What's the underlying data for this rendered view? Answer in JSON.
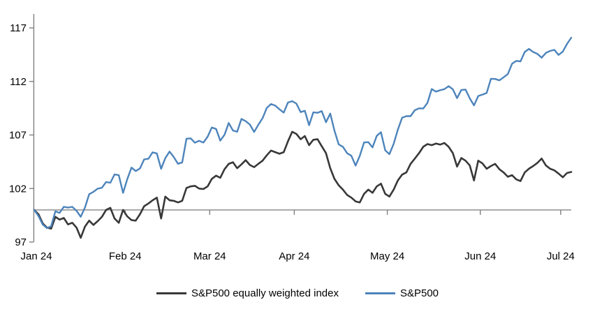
{
  "figure": {
    "background": "#ffffff",
    "text_color": "#000000",
    "axis_color": "#808080",
    "baseline_color": "#a6a6a6"
  },
  "chart_data": {
    "type": "line",
    "title": "",
    "xlabel": "",
    "ylabel": "",
    "x_axis": {
      "tick_labels": [
        "Jan 24",
        "Feb 24",
        "Mar 24",
        "Apr 24",
        "May 24",
        "Jun 24",
        "Jul 24"
      ],
      "tick_day_indices": [
        0.5,
        21.5,
        41.5,
        61.5,
        83.5,
        105.5,
        124.5
      ],
      "unit": "trading days, Dec 29 2023 = index 100"
    },
    "y_axis": {
      "ticks": [
        97,
        102,
        107,
        112,
        117
      ],
      "range": [
        97,
        117
      ],
      "grid": false
    },
    "baseline_value": 100,
    "legend_position": "bottom",
    "series": [
      {
        "name": "S&P500 equally weighted index",
        "color": "#383838",
        "values": [
          100.0,
          99.6,
          98.75,
          98.35,
          98.25,
          99.35,
          99.1,
          99.25,
          98.65,
          98.8,
          98.35,
          97.4,
          98.45,
          99.0,
          98.6,
          98.95,
          99.35,
          100.0,
          100.2,
          99.2,
          98.8,
          100.0,
          99.4,
          99.05,
          99.0,
          99.6,
          100.35,
          100.6,
          100.9,
          101.15,
          99.2,
          101.25,
          100.9,
          100.85,
          100.7,
          100.85,
          102.05,
          102.2,
          102.25,
          102.0,
          101.95,
          102.2,
          102.9,
          103.2,
          103.0,
          103.8,
          104.3,
          104.45,
          103.9,
          104.25,
          104.65,
          104.2,
          104.0,
          104.3,
          104.6,
          105.1,
          105.55,
          105.4,
          105.25,
          105.4,
          106.4,
          107.3,
          107.1,
          106.6,
          106.9,
          106.05,
          106.55,
          106.6,
          105.95,
          105.3,
          103.9,
          102.9,
          102.3,
          101.9,
          101.4,
          101.15,
          100.8,
          100.7,
          101.5,
          101.9,
          101.6,
          102.2,
          102.45,
          101.5,
          101.25,
          101.9,
          102.75,
          103.3,
          103.5,
          104.3,
          104.8,
          105.3,
          105.9,
          106.15,
          106.05,
          106.2,
          106.1,
          106.25,
          105.9,
          105.3,
          104.05,
          104.85,
          104.6,
          104.15,
          102.75,
          104.6,
          104.35,
          103.85,
          104.1,
          104.3,
          103.8,
          103.5,
          103.1,
          103.25,
          102.85,
          102.7,
          103.5,
          103.85,
          104.1,
          104.4,
          104.8,
          104.15,
          103.85,
          103.7,
          103.4,
          103.05,
          103.45,
          103.55
        ]
      },
      {
        "name": "S&P500",
        "color": "#4d84bb",
        "values": [
          100.0,
          99.43,
          98.64,
          98.3,
          98.48,
          99.87,
          99.72,
          100.29,
          100.22,
          100.29,
          99.92,
          99.36,
          100.23,
          101.47,
          101.69,
          101.99,
          102.07,
          102.61,
          102.54,
          103.31,
          103.25,
          101.59,
          102.86,
          103.96,
          103.63,
          103.87,
          104.72,
          104.78,
          105.38,
          105.28,
          103.84,
          104.84,
          105.45,
          104.94,
          104.31,
          104.44,
          106.65,
          106.69,
          106.28,
          106.46,
          106.29,
          106.84,
          107.7,
          107.57,
          106.47,
          107.02,
          108.12,
          107.42,
          107.3,
          108.5,
          108.29,
          107.98,
          107.28,
          107.96,
          108.57,
          109.53,
          109.89,
          109.74,
          109.4,
          109.09,
          110.03,
          110.16,
          109.93,
          109.14,
          109.26,
          107.91,
          109.11,
          109.07,
          109.23,
          108.19,
          109.0,
          107.41,
          106.12,
          105.9,
          105.29,
          105.06,
          104.14,
          105.05,
          106.3,
          106.33,
          105.84,
          106.92,
          107.26,
          105.57,
          105.21,
          106.17,
          107.5,
          108.61,
          108.76,
          108.76,
          109.31,
          109.49,
          109.47,
          110.0,
          111.29,
          111.05,
          111.18,
          111.28,
          111.56,
          111.26,
          110.44,
          111.21,
          111.24,
          110.42,
          109.76,
          110.64,
          110.77,
          110.93,
          112.25,
          112.23,
          112.1,
          112.39,
          112.69,
          113.65,
          113.92,
          113.87,
          114.75,
          115.04,
          114.75,
          114.57,
          114.22,
          114.67,
          114.85,
          114.95,
          114.48,
          114.79,
          115.5,
          116.09
        ]
      }
    ]
  }
}
